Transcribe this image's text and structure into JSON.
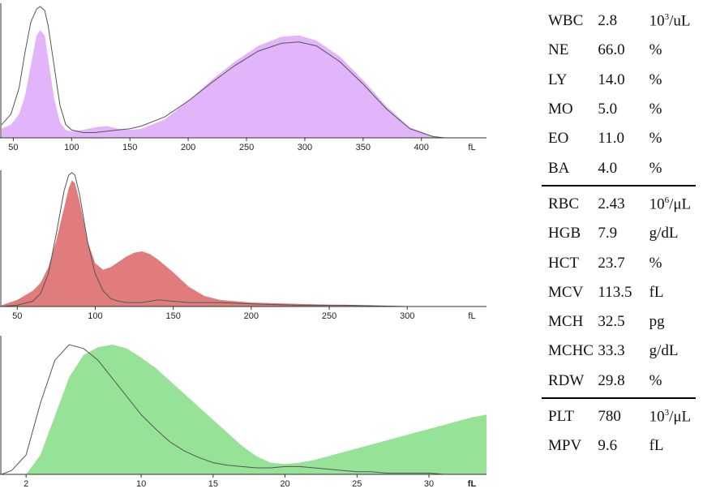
{
  "chart_data": [
    {
      "type": "area",
      "fill": "#e2b4fa",
      "line": "#555555",
      "xlim": [
        40,
        428
      ],
      "unit_label": "fL",
      "unit_bold": false,
      "ticks": [
        {
          "value": 50,
          "label": "50"
        },
        {
          "value": 100,
          "label": "100"
        },
        {
          "value": 150,
          "label": "150"
        },
        {
          "value": 200,
          "label": "200"
        },
        {
          "value": 250,
          "label": "250"
        },
        {
          "value": 300,
          "label": "300"
        },
        {
          "value": 350,
          "label": "350"
        },
        {
          "value": 400,
          "label": "400"
        }
      ],
      "series": [
        {
          "x": [
            40,
            48,
            55,
            60,
            65,
            70,
            73,
            77,
            80,
            85,
            90,
            95,
            100,
            110,
            120,
            130,
            140,
            150,
            160,
            180,
            200,
            220,
            240,
            260,
            280,
            295,
            310,
            330,
            350,
            370,
            390,
            410,
            420
          ],
          "y": [
            0.07,
            0.1,
            0.18,
            0.32,
            0.55,
            0.78,
            0.82,
            0.78,
            0.6,
            0.3,
            0.12,
            0.06,
            0.05,
            0.06,
            0.08,
            0.09,
            0.07,
            0.06,
            0.07,
            0.14,
            0.28,
            0.44,
            0.58,
            0.7,
            0.77,
            0.78,
            0.74,
            0.62,
            0.44,
            0.24,
            0.08,
            0.01,
            0.0
          ]
        },
        {
          "x": [
            40,
            48,
            55,
            60,
            65,
            70,
            73,
            77,
            80,
            85,
            90,
            95,
            100,
            110,
            120,
            130,
            140,
            150,
            160,
            180,
            200,
            220,
            240,
            260,
            280,
            295,
            310,
            330,
            350,
            370,
            390,
            410,
            420
          ],
          "y": [
            0.1,
            0.18,
            0.38,
            0.65,
            0.88,
            0.98,
            1.0,
            0.97,
            0.85,
            0.55,
            0.25,
            0.1,
            0.06,
            0.04,
            0.04,
            0.05,
            0.06,
            0.07,
            0.09,
            0.16,
            0.28,
            0.42,
            0.55,
            0.66,
            0.72,
            0.73,
            0.7,
            0.58,
            0.41,
            0.22,
            0.07,
            0.01,
            0.0
          ]
        }
      ]
    },
    {
      "type": "area",
      "fill": "#e07c7c",
      "line": "#555555",
      "xlim": [
        40,
        330
      ],
      "unit_label": "fL",
      "unit_bold": false,
      "ticks": [
        {
          "value": 50,
          "label": "50"
        },
        {
          "value": 100,
          "label": "100"
        },
        {
          "value": 150,
          "label": "150"
        },
        {
          "value": 200,
          "label": "200"
        },
        {
          "value": 250,
          "label": "250"
        },
        {
          "value": 300,
          "label": "300"
        }
      ],
      "series": [
        {
          "x": [
            40,
            50,
            60,
            65,
            70,
            75,
            80,
            83,
            85,
            87,
            90,
            95,
            100,
            105,
            110,
            115,
            120,
            125,
            130,
            135,
            140,
            150,
            160,
            170,
            180,
            200,
            230,
            260,
            300,
            320
          ],
          "y": [
            0.01,
            0.05,
            0.12,
            0.18,
            0.3,
            0.5,
            0.75,
            0.9,
            0.96,
            0.94,
            0.8,
            0.5,
            0.33,
            0.28,
            0.3,
            0.34,
            0.38,
            0.41,
            0.42,
            0.4,
            0.36,
            0.26,
            0.15,
            0.08,
            0.05,
            0.03,
            0.02,
            0.01,
            0.0,
            0.0
          ]
        },
        {
          "x": [
            40,
            50,
            60,
            65,
            70,
            75,
            80,
            83,
            85,
            87,
            90,
            95,
            100,
            105,
            110,
            115,
            120,
            125,
            130,
            135,
            140,
            150,
            160,
            170,
            180,
            200,
            230,
            260,
            300,
            320
          ],
          "y": [
            0.0,
            0.01,
            0.04,
            0.1,
            0.25,
            0.55,
            0.88,
            1.0,
            1.02,
            1.0,
            0.85,
            0.5,
            0.25,
            0.12,
            0.06,
            0.04,
            0.03,
            0.03,
            0.03,
            0.04,
            0.05,
            0.04,
            0.03,
            0.03,
            0.03,
            0.02,
            0.01,
            0.01,
            0.0,
            0.0
          ]
        }
      ]
    },
    {
      "type": "area",
      "fill": "#96e296",
      "line": "#555555",
      "xlim": [
        0.3,
        34
      ],
      "unit_label": "fL",
      "unit_bold": true,
      "ticks": [
        {
          "value": 2,
          "label": "2"
        },
        {
          "value": 10,
          "label": "10"
        },
        {
          "value": 15,
          "label": "15"
        },
        {
          "value": 20,
          "label": "20"
        },
        {
          "value": 25,
          "label": "25"
        },
        {
          "value": 30,
          "label": "30"
        }
      ],
      "series": [
        {
          "x": [
            0.3,
            2,
            3,
            4,
            5,
            6,
            7,
            8,
            9,
            10,
            11,
            12,
            13,
            14,
            15,
            16,
            17,
            18,
            19,
            20,
            21,
            22,
            23,
            24,
            25,
            26,
            27,
            28,
            29,
            30,
            31,
            32,
            33,
            34
          ],
          "y": [
            0.0,
            0.0,
            0.15,
            0.45,
            0.75,
            0.92,
            0.98,
            1.0,
            0.97,
            0.9,
            0.82,
            0.72,
            0.62,
            0.52,
            0.42,
            0.32,
            0.22,
            0.14,
            0.09,
            0.08,
            0.09,
            0.11,
            0.14,
            0.17,
            0.2,
            0.23,
            0.26,
            0.29,
            0.32,
            0.35,
            0.38,
            0.41,
            0.44,
            0.46
          ]
        },
        {
          "x": [
            0.3,
            1,
            2,
            3,
            4,
            5,
            6,
            7,
            8,
            9,
            10,
            11,
            12,
            13,
            14,
            15,
            16,
            17,
            18,
            19,
            20,
            21,
            22,
            23,
            24,
            25,
            26,
            27,
            28,
            29,
            30,
            31,
            32,
            33,
            34
          ],
          "y": [
            0.0,
            0.03,
            0.15,
            0.55,
            0.88,
            1.0,
            0.97,
            0.88,
            0.74,
            0.6,
            0.46,
            0.35,
            0.25,
            0.18,
            0.13,
            0.09,
            0.07,
            0.06,
            0.05,
            0.05,
            0.06,
            0.06,
            0.05,
            0.04,
            0.03,
            0.02,
            0.02,
            0.01,
            0.01,
            0.01,
            0.01,
            0.0,
            0.0,
            0.0,
            0.0
          ]
        }
      ]
    }
  ],
  "results": [
    {
      "rows": [
        {
          "name": "WBC",
          "value": "2.8",
          "unit_base": "10",
          "unit_sup": "3",
          "unit_tail": "/uL"
        },
        {
          "name": "NE",
          "value": "66.0",
          "unit_base": "%",
          "unit_sup": "",
          "unit_tail": ""
        },
        {
          "name": "LY",
          "value": "14.0",
          "unit_base": "%",
          "unit_sup": "",
          "unit_tail": ""
        },
        {
          "name": "MO",
          "value": "5.0",
          "unit_base": "%",
          "unit_sup": "",
          "unit_tail": ""
        },
        {
          "name": "EO",
          "value": "11.0",
          "unit_base": "%",
          "unit_sup": "",
          "unit_tail": ""
        },
        {
          "name": "BA",
          "value": "4.0",
          "unit_base": "%",
          "unit_sup": "",
          "unit_tail": ""
        }
      ]
    },
    {
      "rows": [
        {
          "name": "RBC",
          "value": "2.43",
          "unit_base": "10",
          "unit_sup": "6",
          "unit_tail": "/μL"
        },
        {
          "name": "HGB",
          "value": "7.9",
          "unit_base": "g/dL",
          "unit_sup": "",
          "unit_tail": ""
        },
        {
          "name": "HCT",
          "value": "23.7",
          "unit_base": "%",
          "unit_sup": "",
          "unit_tail": ""
        },
        {
          "name": "MCV",
          "value": "113.5",
          "unit_base": "fL",
          "unit_sup": "",
          "unit_tail": ""
        },
        {
          "name": "MCH",
          "value": "32.5",
          "unit_base": "pg",
          "unit_sup": "",
          "unit_tail": ""
        },
        {
          "name": "MCHC",
          "value": "33.3",
          "unit_base": "g/dL",
          "unit_sup": "",
          "unit_tail": ""
        },
        {
          "name": "RDW",
          "value": "29.8",
          "unit_base": "%",
          "unit_sup": "",
          "unit_tail": ""
        }
      ]
    },
    {
      "rows": [
        {
          "name": "PLT",
          "value": "780",
          "unit_base": "10",
          "unit_sup": "3",
          "unit_tail": "/μL"
        },
        {
          "name": "MPV",
          "value": "9.6",
          "unit_base": "fL",
          "unit_sup": "",
          "unit_tail": ""
        }
      ]
    }
  ]
}
